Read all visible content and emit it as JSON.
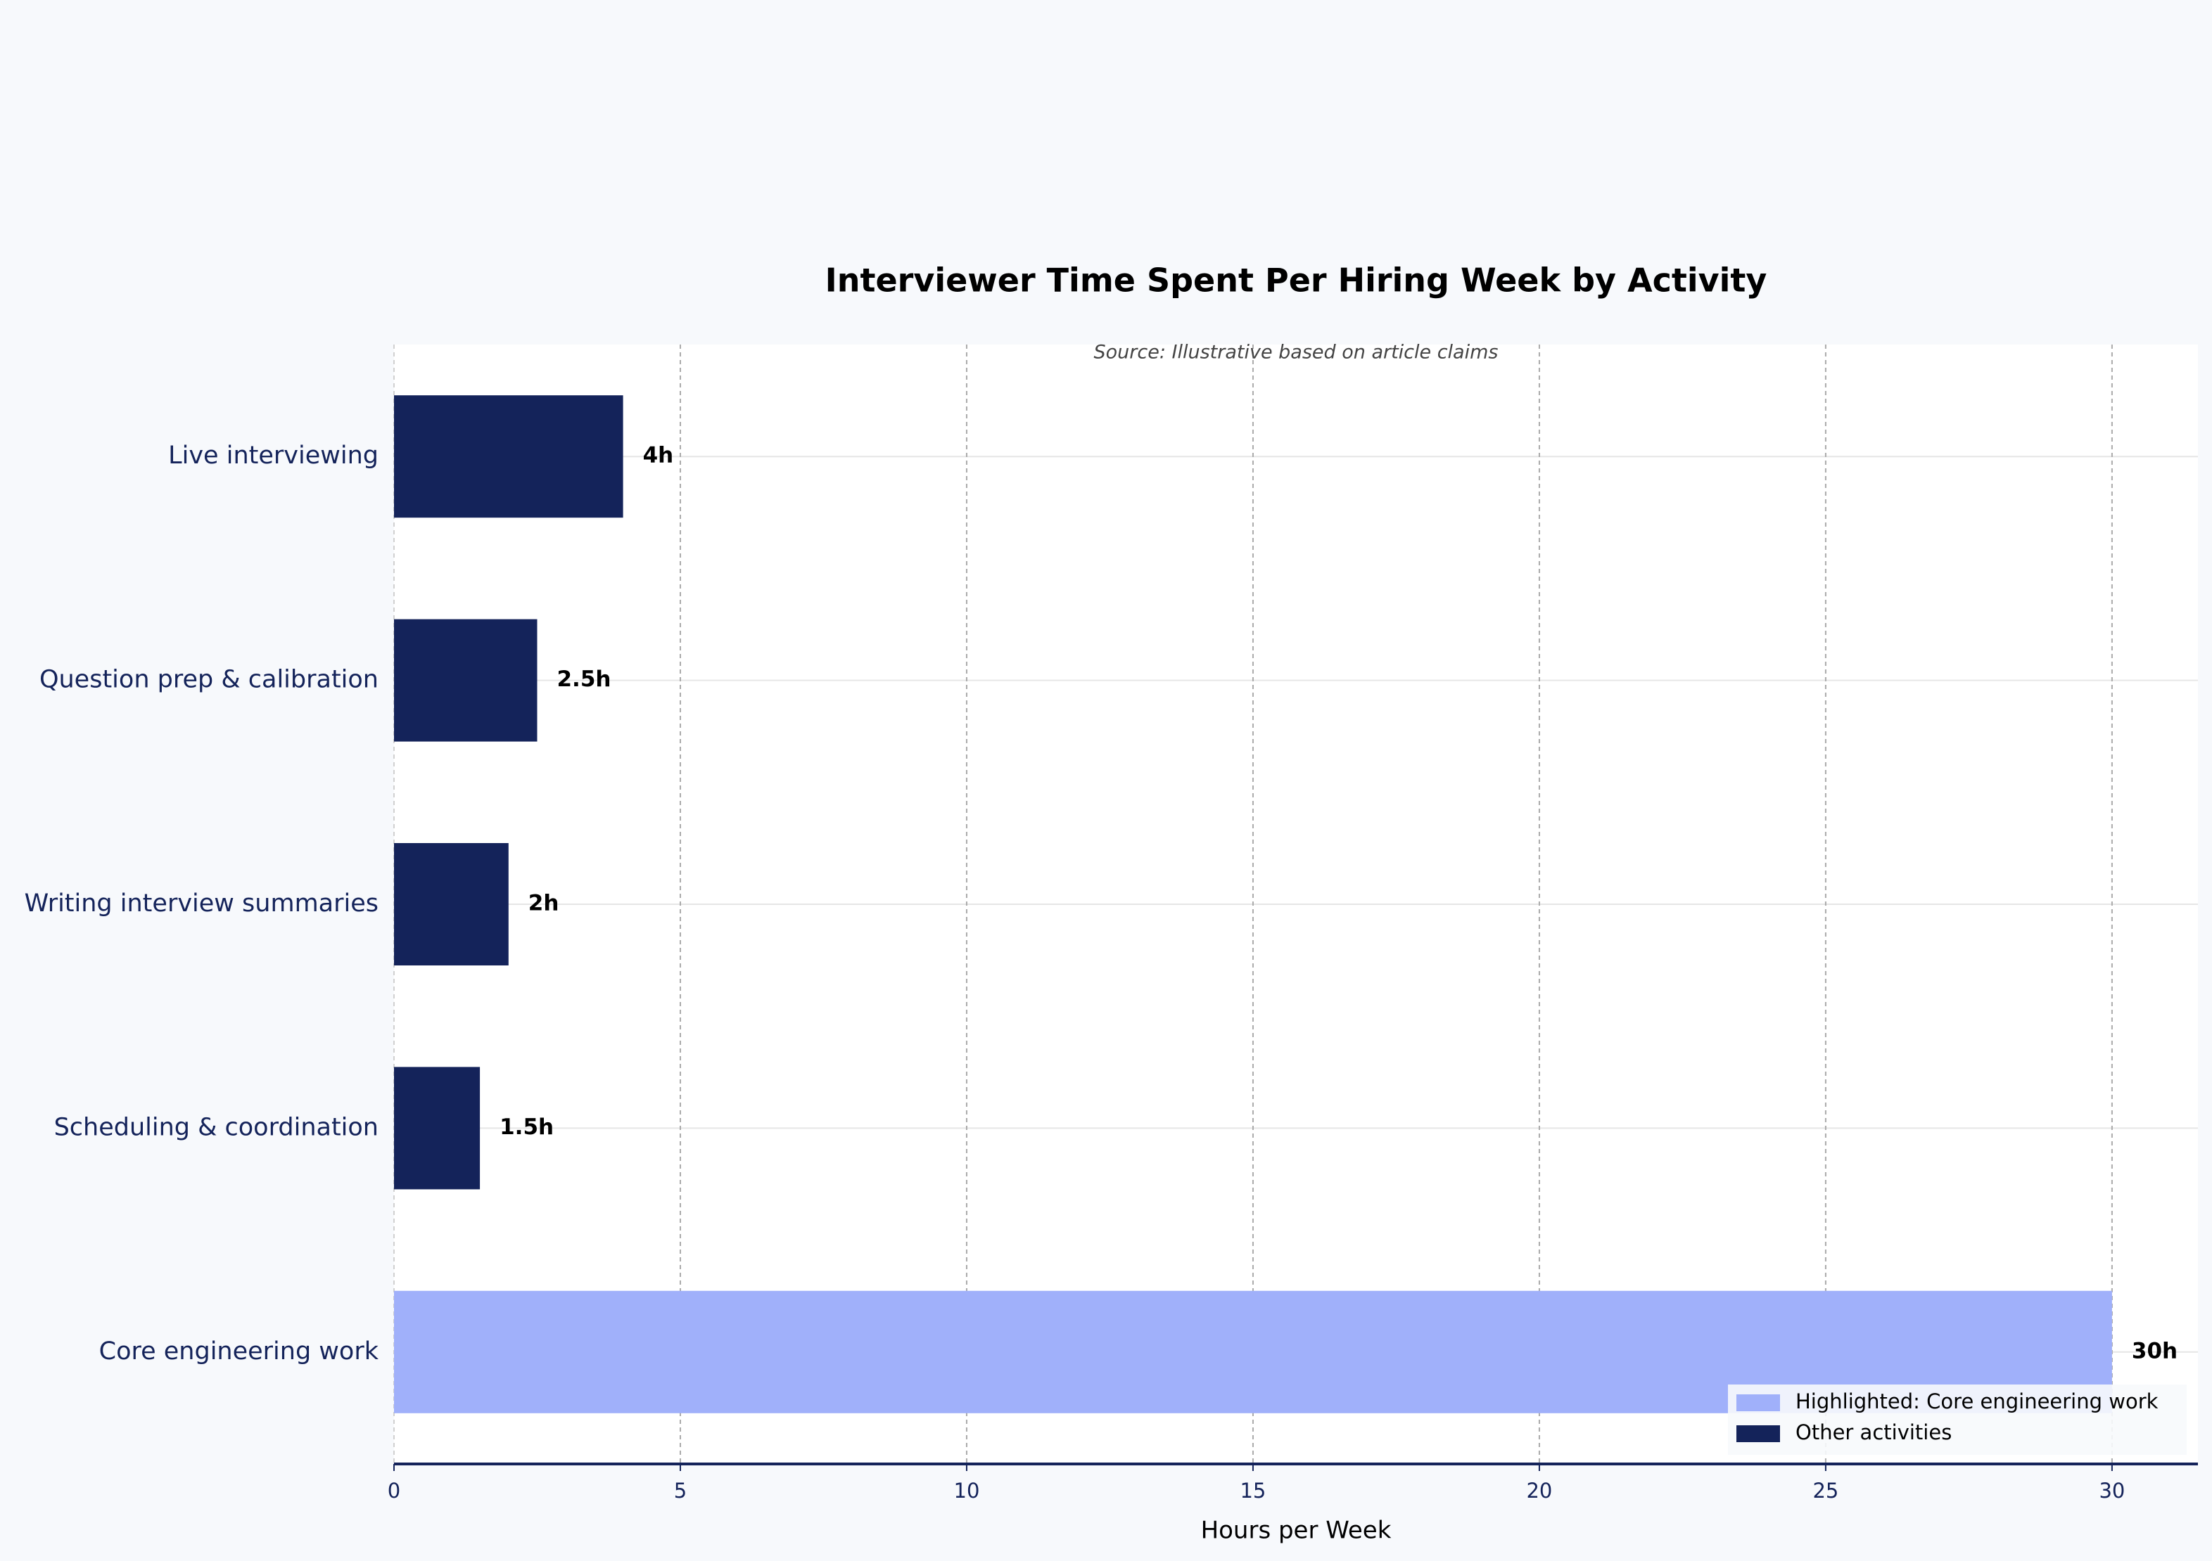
{
  "chart_data": {
    "type": "bar",
    "orientation": "horizontal",
    "title": "Interviewer Time Spent Per Hiring Week by Activity",
    "subtitle": "Source: Illustrative based on article claims",
    "xlabel": "Hours per Week",
    "ylabel": "",
    "xlim": [
      0,
      31.5
    ],
    "xticks": [
      0,
      5,
      10,
      15,
      20,
      25,
      30
    ],
    "grid": true,
    "categories": [
      "Live interviewing",
      "Question prep & calibration",
      "Writing interview summaries",
      "Scheduling & coordination",
      "Core engineering work"
    ],
    "values": [
      4,
      2.5,
      2,
      1.5,
      30
    ],
    "value_labels": [
      "4h",
      "2.5h",
      "2h",
      "1.5h",
      "30h"
    ],
    "highlight": [
      false,
      false,
      false,
      false,
      true
    ],
    "colors": {
      "highlight": "#a0b0fa",
      "other": "#14235a",
      "background": "#f7f9fc",
      "plot_background": "#ffffff"
    },
    "legend": {
      "position": "bottom-right",
      "entries": [
        {
          "label": "Highlighted: Core engineering work",
          "color": "#a0b0fa"
        },
        {
          "label": "Other activities",
          "color": "#14235a"
        }
      ]
    }
  }
}
